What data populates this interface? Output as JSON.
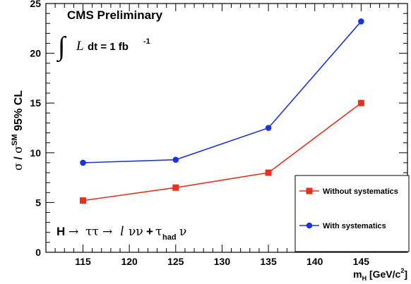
{
  "chart_data": {
    "type": "line",
    "annotations": {
      "cms": "CMS Preliminary",
      "lumi_symbol": "∫",
      "lumi_var": "L",
      "lumi_text": "dt = 1 fb",
      "lumi_exp": "-1",
      "channel_h": "H",
      "channel_arrow1": "→",
      "channel_tautau": "ττ",
      "channel_arrow2": "→",
      "channel_l": "l",
      "channel_nunu": "νν",
      "channel_plus": "+",
      "channel_tau": "τ",
      "channel_had": "had",
      "channel_nu": "ν"
    },
    "ylabel": {
      "sigma1": "σ",
      "slash": " / ",
      "sigma2": "σ",
      "sup": "SM",
      "rest": " 95% CL"
    },
    "xlabel": {
      "m": "m",
      "sub": "H",
      "unit": " [GeV/c",
      "exp": "2",
      "close": "]"
    },
    "xlim": [
      111,
      150
    ],
    "ylim": [
      0,
      25
    ],
    "x_ticks": [
      115,
      120,
      125,
      130,
      135,
      140,
      145
    ],
    "y_ticks": [
      0,
      5,
      10,
      15,
      20,
      25
    ],
    "grid": false,
    "legend_position": "bottom-right",
    "x": [
      115,
      125,
      135,
      145
    ],
    "series": [
      {
        "name": "Without systematics",
        "values": [
          5.2,
          6.5,
          8.0,
          15.0
        ],
        "color": "#e8301c",
        "marker": "square"
      },
      {
        "name": "With systematics",
        "values": [
          9.0,
          9.3,
          12.5,
          23.2
        ],
        "color": "#1c34e0",
        "marker": "circle"
      }
    ]
  }
}
